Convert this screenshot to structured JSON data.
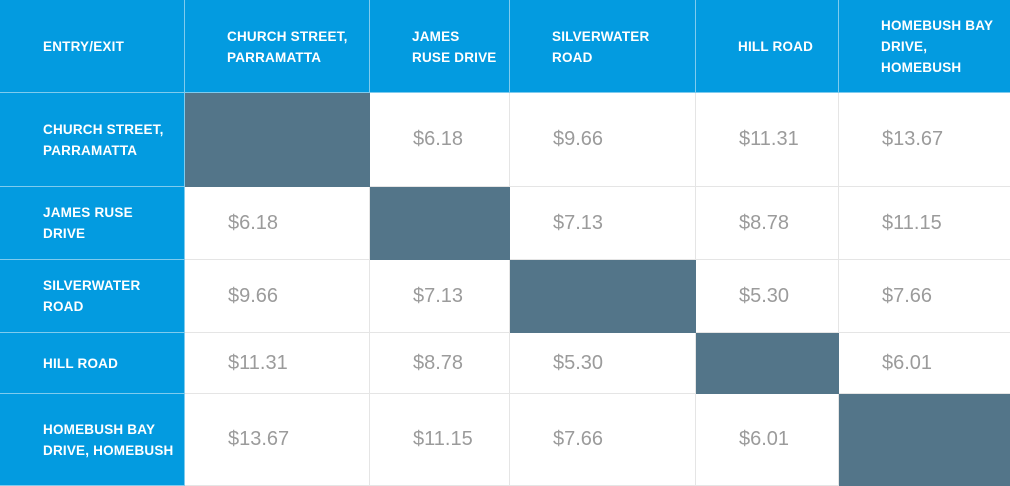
{
  "table": {
    "corner_label": "ENTRY/EXIT",
    "column_headers": [
      "CHURCH STREET, PARRAMATTA",
      "JAMES RUSE DRIVE",
      "SILVERWATER ROAD",
      "HILL ROAD",
      "HOMEBUSH BAY DRIVE, HOMEBUSH"
    ],
    "rows": [
      {
        "label": "CHURCH STREET, PARRAMATTA",
        "cells": [
          "",
          "$6.18",
          "$9.66",
          "$11.31",
          "$13.67"
        ]
      },
      {
        "label": "JAMES RUSE DRIVE",
        "cells": [
          "$6.18",
          "",
          "$7.13",
          "$8.78",
          "$11.15"
        ]
      },
      {
        "label": "SILVERWATER ROAD",
        "cells": [
          "$9.66",
          "$7.13",
          "",
          "$5.30",
          "$7.66"
        ]
      },
      {
        "label": "HILL ROAD",
        "cells": [
          "$11.31",
          "$8.78",
          "$5.30",
          "",
          "$6.01"
        ]
      },
      {
        "label": "HOMEBUSH BAY DRIVE, HOMEBUSH",
        "cells": [
          "$13.67",
          "$11.15",
          "$7.66",
          "$6.01",
          ""
        ]
      }
    ]
  },
  "colors": {
    "header_blue": "#039be0",
    "diagonal_slate": "#537589",
    "price_text": "#9b9b9b"
  }
}
